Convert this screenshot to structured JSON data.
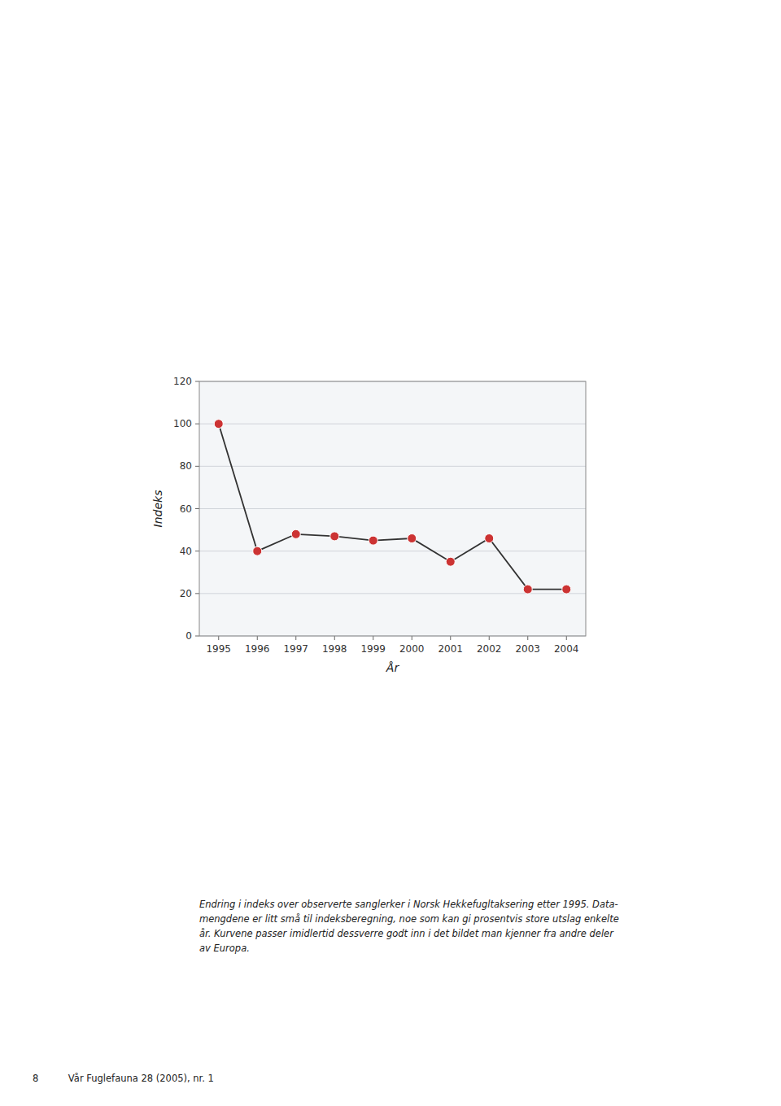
{
  "chart_data": {
    "type": "line",
    "x": [
      1995,
      1996,
      1997,
      1998,
      1999,
      2000,
      2001,
      2002,
      2003,
      2004
    ],
    "values": [
      100,
      40,
      48,
      47,
      45,
      46,
      35,
      46,
      22,
      22
    ],
    "x_label": "År",
    "y_label": "Indeks",
    "xlim": [
      1994.5,
      2004.5
    ],
    "xticks": [
      1995,
      1996,
      1997,
      1998,
      1999,
      2000,
      2001,
      2002,
      2003,
      2004
    ],
    "ylim": [
      0,
      120
    ],
    "yticks": [
      0,
      20,
      40,
      60,
      80,
      100,
      120
    ],
    "grid": true,
    "color": "#cc3333",
    "marker": "circle",
    "annotations": [
      "Endring i indeks over observerte sanglerker i Norsk Hekkefugltaksering etter 1995. Data-",
      "mengdene er litt små til indeksberegning, noe som kan gi prosentvis store utslag enkelte",
      "år. Kurvene passer imidlertid dessverre godt inn i det bildet man kjenner fra andre deler",
      "av Europa.",
      "8          Vår Fuglefauna 28 (2005), nr. 1"
    ]
  }
}
